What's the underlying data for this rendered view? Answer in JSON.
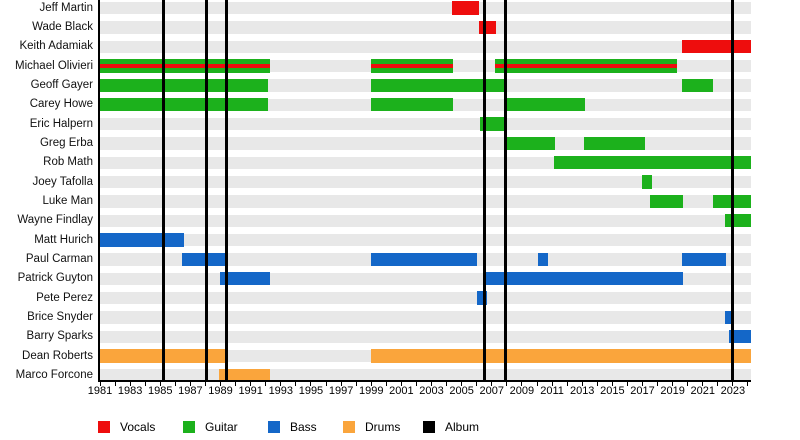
{
  "chart_data": {
    "type": "timeline",
    "description": "Band members timeline (Gantt-style) with instrument roles and album release markers",
    "x_axis": {
      "start": 1981,
      "end": 2024.2,
      "tick_interval": 1,
      "year_labels": [
        "1981",
        "1983",
        "1985",
        "1987",
        "1989",
        "1991",
        "1993",
        "1995",
        "1997",
        "1999",
        "2001",
        "2003",
        "2005",
        "2007",
        "2009",
        "2011",
        "2013",
        "2015",
        "2017",
        "2019",
        "2021",
        "2023"
      ]
    },
    "legend": [
      {
        "label": "Vocals",
        "color": "#ee0d0d"
      },
      {
        "label": "Guitar",
        "color": "#1cb11c"
      },
      {
        "label": "Bass",
        "color": "#1467c8"
      },
      {
        "label": "Drums",
        "color": "#faa53c"
      },
      {
        "label": "Album",
        "color": "#000000"
      }
    ],
    "albums": [
      1985.2,
      1988.1,
      1989.4,
      2006.5,
      2007.9,
      2023.0
    ],
    "members": [
      {
        "name": "Jeff Martin",
        "role": "Vocals",
        "segments": [
          [
            2004.35,
            2006.15
          ]
        ]
      },
      {
        "name": "Wade Black",
        "role": "Vocals",
        "segments": [
          [
            2006.15,
            2007.3
          ]
        ]
      },
      {
        "name": "Keith Adamiak",
        "role": "Vocals",
        "segments": [
          [
            2019.6,
            2024.2
          ]
        ]
      },
      {
        "name": "Michael Olivieri",
        "role": "Guitar",
        "overlay_role": "Vocals",
        "segments": [
          [
            1981,
            1992.3
          ],
          [
            1999,
            2004.4
          ],
          [
            2007.2,
            2019.3
          ]
        ]
      },
      {
        "name": "Geoff Gayer",
        "role": "Guitar",
        "segments": [
          [
            1981,
            1992.15
          ],
          [
            1999,
            2008.0
          ],
          [
            2019.6,
            2021.7
          ]
        ]
      },
      {
        "name": "Carey Howe",
        "role": "Guitar",
        "segments": [
          [
            1981,
            1992.15
          ],
          [
            1999,
            2004.4
          ],
          [
            2007.9,
            2013.2
          ]
        ]
      },
      {
        "name": "Eric Halpern",
        "role": "Guitar",
        "segments": [
          [
            2006.2,
            2007.9
          ]
        ]
      },
      {
        "name": "Greg Erba",
        "role": "Guitar",
        "segments": [
          [
            2007.9,
            2011.2
          ],
          [
            2013.1,
            2017.2
          ]
        ]
      },
      {
        "name": "Rob Math",
        "role": "Guitar",
        "segments": [
          [
            2011.1,
            2024.2
          ]
        ]
      },
      {
        "name": "Joey Tafolla",
        "role": "Guitar",
        "segments": [
          [
            2017.0,
            2017.6
          ]
        ]
      },
      {
        "name": "Luke Man",
        "role": "Guitar",
        "segments": [
          [
            2017.5,
            2019.7
          ],
          [
            2021.7,
            2024.2
          ]
        ]
      },
      {
        "name": "Wayne Findlay",
        "role": "Guitar",
        "segments": [
          [
            2022.5,
            2024.2
          ]
        ]
      },
      {
        "name": "Matt Hurich",
        "role": "Bass",
        "segments": [
          [
            1981,
            1986.6
          ]
        ]
      },
      {
        "name": "Paul Carman",
        "role": "Bass",
        "segments": [
          [
            1986.45,
            1989.3
          ],
          [
            1999,
            2006.0
          ],
          [
            2010.05,
            2010.7
          ],
          [
            2019.6,
            2022.55
          ]
        ]
      },
      {
        "name": "Patrick Guyton",
        "role": "Bass",
        "segments": [
          [
            1988.95,
            1992.3
          ],
          [
            2006.6,
            2019.7
          ]
        ]
      },
      {
        "name": "Pete Perez",
        "role": "Bass",
        "segments": [
          [
            2006.0,
            2006.7
          ]
        ]
      },
      {
        "name": "Brice Snyder",
        "role": "Bass",
        "segments": [
          [
            2022.5,
            2022.9
          ]
        ]
      },
      {
        "name": "Barry Sparks",
        "role": "Bass",
        "segments": [
          [
            2022.75,
            2024.2
          ]
        ]
      },
      {
        "name": "Dean Roberts",
        "role": "Drums",
        "segments": [
          [
            1981,
            1989.3
          ],
          [
            1999,
            2024.2
          ]
        ]
      },
      {
        "name": "Marco Forcone",
        "role": "Drums",
        "segments": [
          [
            1988.9,
            1992.3
          ]
        ]
      }
    ]
  }
}
